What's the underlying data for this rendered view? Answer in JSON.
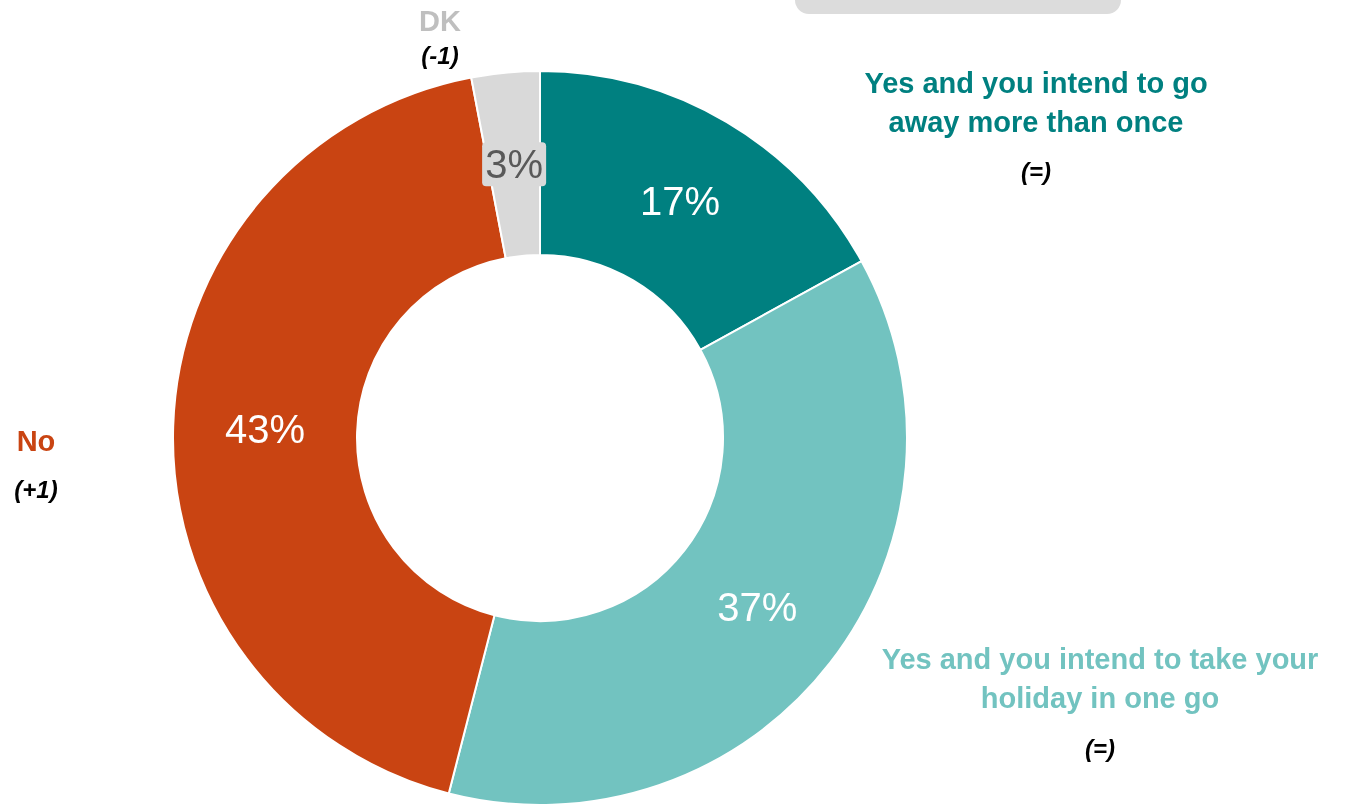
{
  "chart_data": {
    "type": "donut",
    "categories": [
      "Yes and you intend to go away more than once",
      "Yes and you intend to take your holiday in one go",
      "No",
      "DK"
    ],
    "values": [
      17,
      37,
      43,
      3
    ],
    "colors": [
      "#008080",
      "#72c3c0",
      "#c94412",
      "#d9d9d9"
    ],
    "value_labels": [
      "17%",
      "37%",
      "43%",
      "3%"
    ],
    "annotations": [
      "(=)",
      "(=)",
      "(+1)",
      "(-1)"
    ]
  }
}
